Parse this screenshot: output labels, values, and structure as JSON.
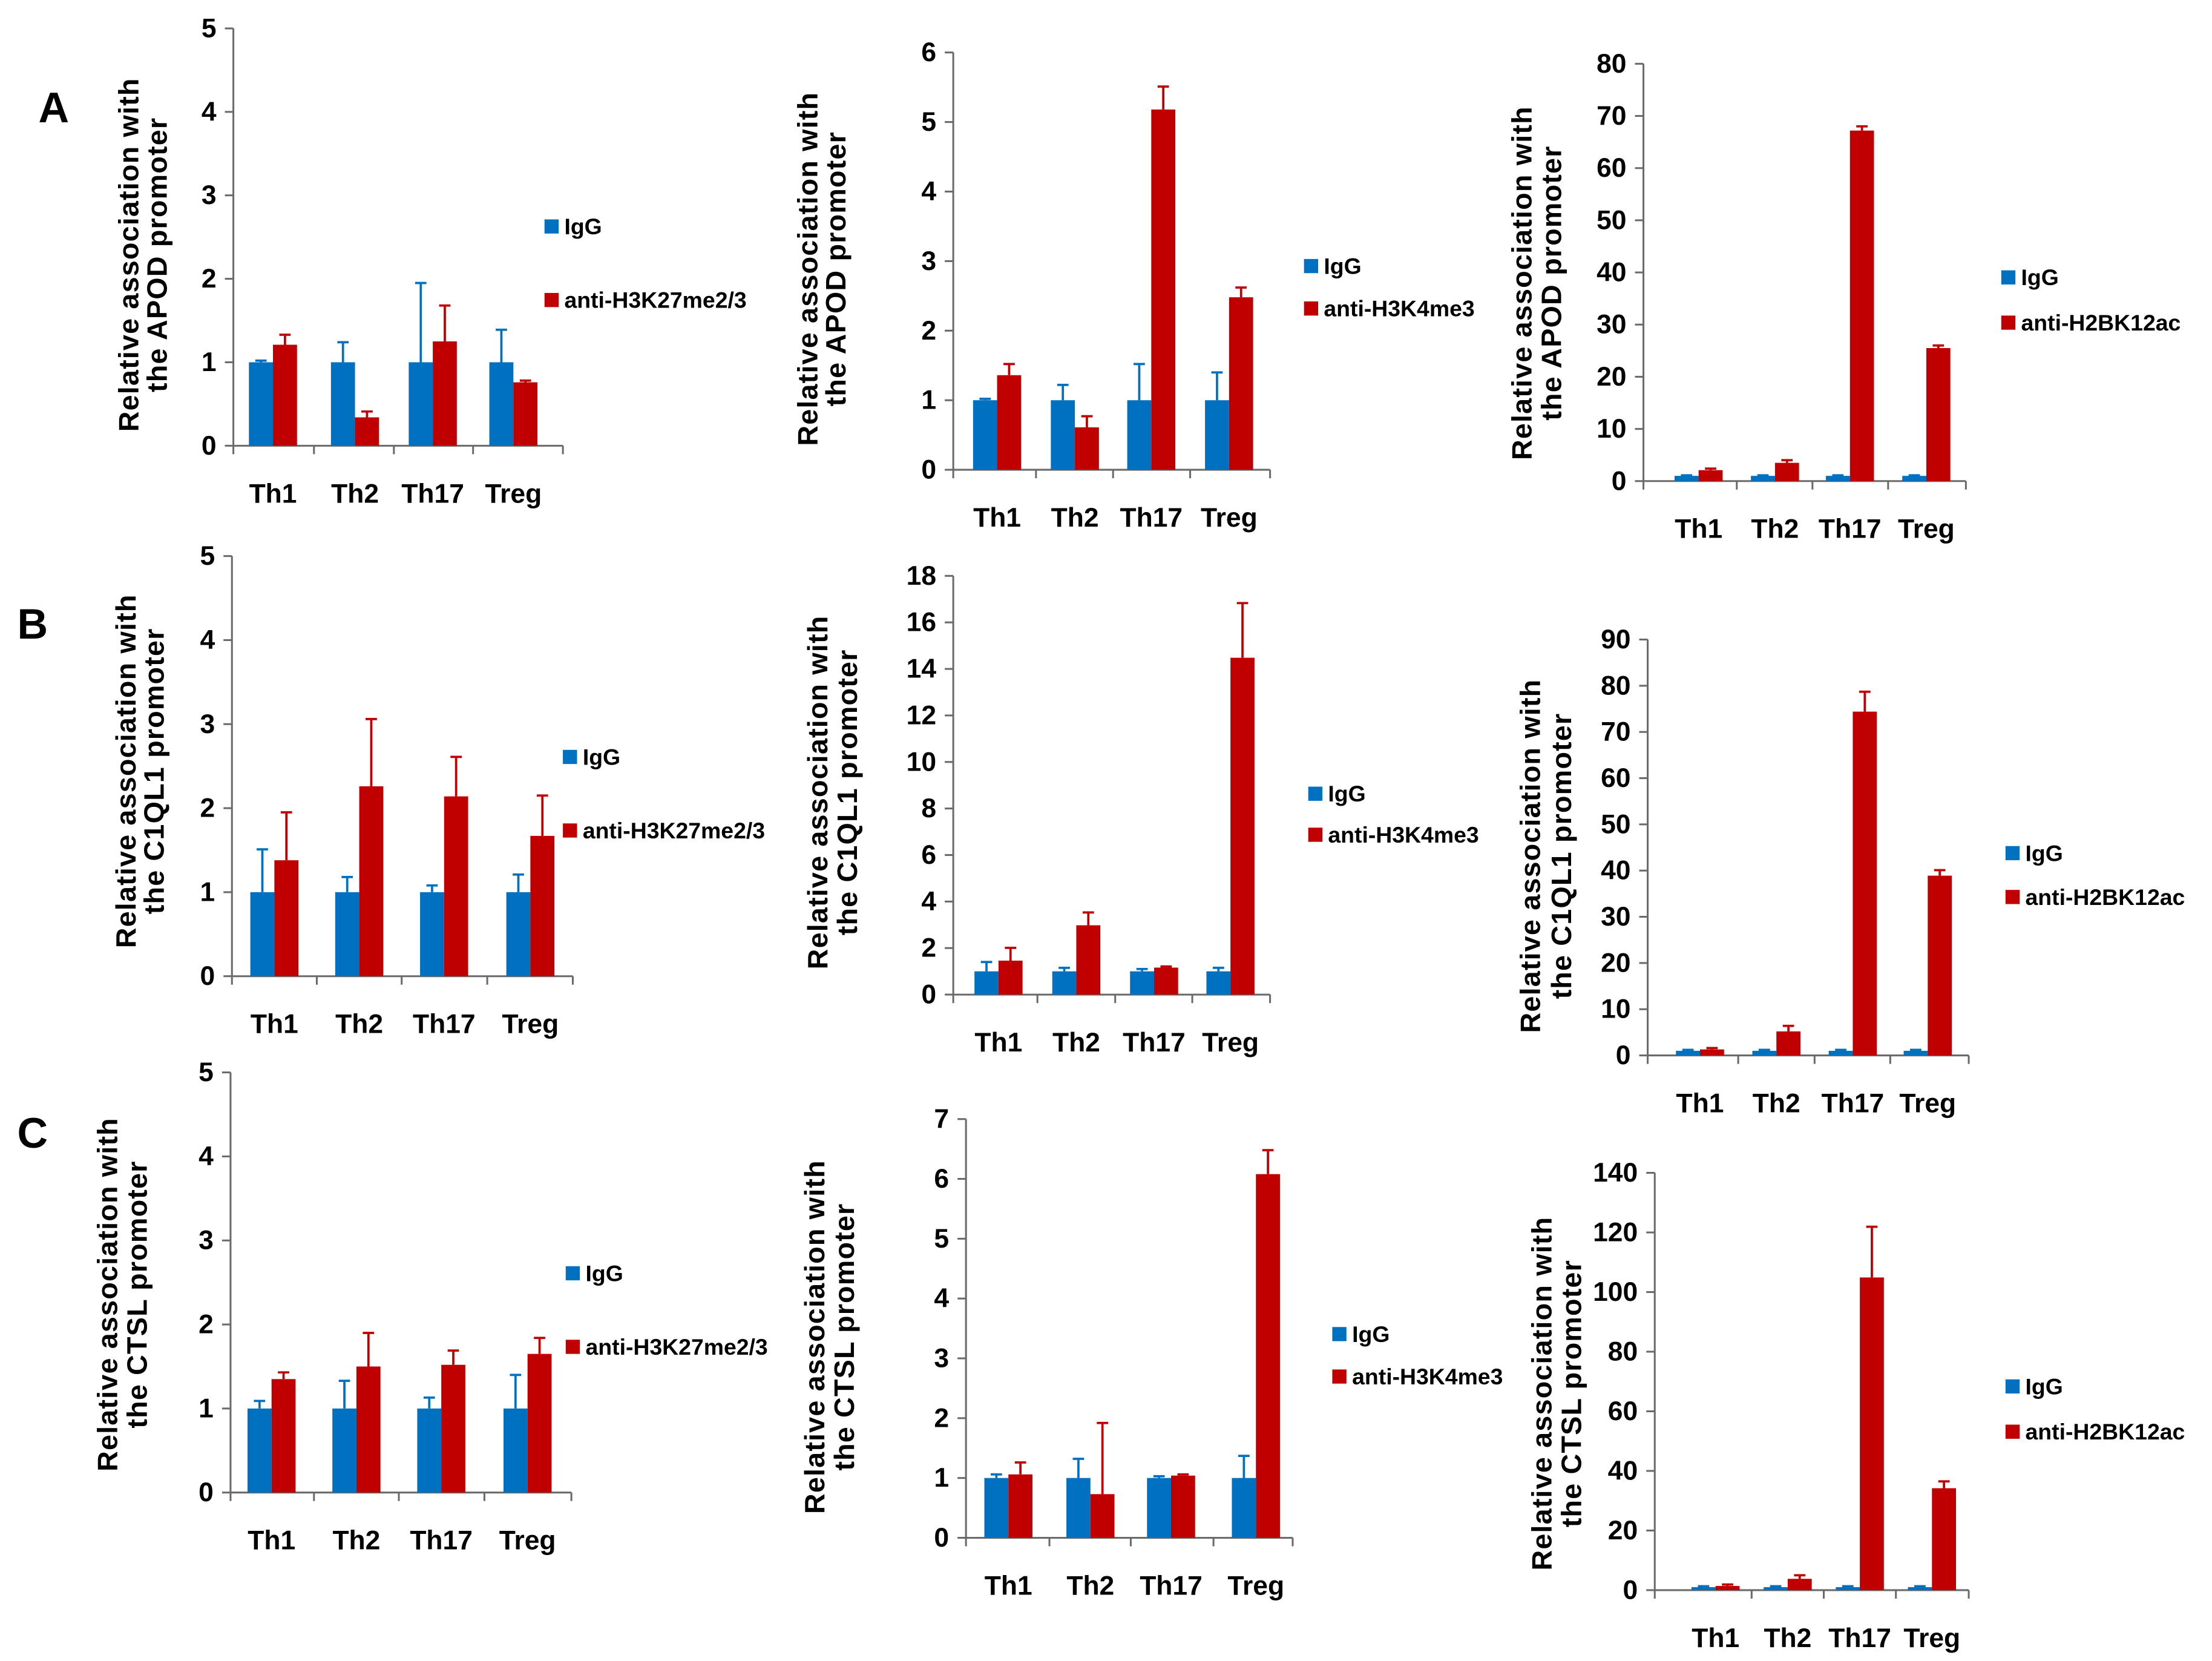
{
  "row_labels": [
    "A",
    "B",
    "C"
  ],
  "chart_data": [
    {
      "type": "bar",
      "legend": "right",
      "grid": false,
      "ylabel": [
        "Relative association with",
        "the APOD promoter"
      ],
      "categories": [
        "Th1",
        "Th2",
        "Th17",
        "Treg"
      ],
      "ylim": [
        0,
        5
      ],
      "yticks": [
        0,
        1,
        2,
        3,
        4,
        5
      ],
      "series": [
        {
          "name": "IgG",
          "color": "#0070C0",
          "values": [
            1,
            1,
            1,
            1
          ],
          "errors": [
            0.02,
            0.24,
            0.95,
            0.39
          ]
        },
        {
          "name": "anti-H3K27me2/3",
          "color": "#C00000",
          "values": [
            1.21,
            0.34,
            1.25,
            0.76
          ],
          "errors": [
            0.12,
            0.07,
            0.43,
            0.02
          ]
        }
      ]
    },
    {
      "type": "bar",
      "legend": "right",
      "grid": false,
      "ylabel": [
        "Relative association with",
        "the APOD promoter"
      ],
      "categories": [
        "Th1",
        "Th2",
        "Th17",
        "Treg"
      ],
      "ylim": [
        0,
        6
      ],
      "yticks": [
        0,
        1,
        2,
        3,
        4,
        5,
        6
      ],
      "series": [
        {
          "name": "IgG",
          "color": "#0070C0",
          "values": [
            1,
            1,
            1,
            1
          ],
          "errors": [
            0.02,
            0.22,
            0.52,
            0.4
          ]
        },
        {
          "name": "anti-H3K4me3",
          "color": "#C00000",
          "values": [
            1.36,
            0.61,
            5.18,
            2.48
          ],
          "errors": [
            0.16,
            0.16,
            0.33,
            0.14
          ]
        }
      ]
    },
    {
      "type": "bar",
      "legend": "right",
      "grid": false,
      "ylabel": [
        "Relative association with",
        "the APOD promoter"
      ],
      "categories": [
        "Th1",
        "Th2",
        "Th17",
        "Treg"
      ],
      "ylim": [
        0,
        80
      ],
      "yticks": [
        0,
        10,
        20,
        30,
        40,
        50,
        60,
        70,
        80
      ],
      "series": [
        {
          "name": "IgG",
          "color": "#0070C0",
          "values": [
            1,
            1,
            1,
            1
          ],
          "errors": [
            0.1,
            0.1,
            0.1,
            0.1
          ]
        },
        {
          "name": "anti-H2BK12ac",
          "color": "#C00000",
          "values": [
            2.1,
            3.5,
            67.2,
            25.5
          ],
          "errors": [
            0.3,
            0.5,
            0.8,
            0.5
          ]
        }
      ]
    },
    {
      "type": "bar",
      "legend": "right",
      "grid": false,
      "ylabel": [
        "Relative association with",
        "the C1QL1 promoter"
      ],
      "categories": [
        "Th1",
        "Th2",
        "Th17",
        "Treg"
      ],
      "ylim": [
        0,
        5
      ],
      "yticks": [
        0,
        1,
        2,
        3,
        4,
        5
      ],
      "series": [
        {
          "name": "IgG",
          "color": "#0070C0",
          "values": [
            1,
            1,
            1,
            1
          ],
          "errors": [
            0.51,
            0.18,
            0.08,
            0.21
          ]
        },
        {
          "name": "anti-H3K27me2/3",
          "color": "#C00000",
          "values": [
            1.38,
            2.26,
            2.14,
            1.67
          ],
          "errors": [
            0.57,
            0.8,
            0.47,
            0.48
          ]
        }
      ]
    },
    {
      "type": "bar",
      "legend": "right",
      "grid": false,
      "ylabel": [
        "Relative association with",
        "the C1QL1 promoter"
      ],
      "categories": [
        "Th1",
        "Th2",
        "Th17",
        "Treg"
      ],
      "ylim": [
        0,
        18
      ],
      "yticks": [
        0,
        2,
        4,
        6,
        8,
        10,
        12,
        14,
        16,
        18
      ],
      "series": [
        {
          "name": "IgG",
          "color": "#0070C0",
          "values": [
            1,
            1,
            1,
            1
          ],
          "errors": [
            0.4,
            0.15,
            0.1,
            0.15
          ]
        },
        {
          "name": "anti-H3K4me3",
          "color": "#C00000",
          "values": [
            1.46,
            2.98,
            1.16,
            14.48
          ],
          "errors": [
            0.55,
            0.55,
            0.05,
            2.35
          ]
        }
      ]
    },
    {
      "type": "bar",
      "legend": "right",
      "grid": false,
      "ylabel": [
        "Relative association with",
        "the C1QL1 promoter"
      ],
      "categories": [
        "Th1",
        "Th2",
        "Th17",
        "Treg"
      ],
      "ylim": [
        0,
        90
      ],
      "yticks": [
        0,
        10,
        20,
        30,
        40,
        50,
        60,
        70,
        80,
        90
      ],
      "series": [
        {
          "name": "IgG",
          "color": "#0070C0",
          "values": [
            1,
            1,
            1,
            1
          ],
          "errors": [
            0.2,
            0.2,
            0.2,
            0.2
          ]
        },
        {
          "name": "anti-H2BK12ac",
          "color": "#C00000",
          "values": [
            1.3,
            5.2,
            74.4,
            38.9
          ],
          "errors": [
            0.3,
            1.2,
            4.3,
            1.2
          ]
        }
      ]
    },
    {
      "type": "bar",
      "legend": "right",
      "grid": false,
      "ylabel": [
        "Relative association with",
        "the CTSL promoter"
      ],
      "categories": [
        "Th1",
        "Th2",
        "Th17",
        "Treg"
      ],
      "ylim": [
        0,
        5
      ],
      "yticks": [
        0,
        1,
        2,
        3,
        4,
        5
      ],
      "series": [
        {
          "name": "IgG",
          "color": "#0070C0",
          "values": [
            1,
            1,
            1,
            1
          ],
          "errors": [
            0.09,
            0.33,
            0.13,
            0.4
          ]
        },
        {
          "name": "anti-H3K27me2/3",
          "color": "#C00000",
          "values": [
            1.35,
            1.5,
            1.52,
            1.65
          ],
          "errors": [
            0.08,
            0.4,
            0.17,
            0.19
          ]
        }
      ]
    },
    {
      "type": "bar",
      "legend": "right",
      "grid": false,
      "ylabel": [
        "Relative association with",
        "the CTSL promoter"
      ],
      "categories": [
        "Th1",
        "Th2",
        "Th17",
        "Treg"
      ],
      "ylim": [
        0,
        7
      ],
      "yticks": [
        0,
        1,
        2,
        3,
        4,
        5,
        6,
        7
      ],
      "series": [
        {
          "name": "IgG",
          "color": "#0070C0",
          "values": [
            1,
            1,
            1,
            1
          ],
          "errors": [
            0.06,
            0.32,
            0.03,
            0.37
          ]
        },
        {
          "name": "anti-H3K4me3",
          "color": "#C00000",
          "values": [
            1.06,
            0.73,
            1.04,
            6.08
          ],
          "errors": [
            0.2,
            1.19,
            0.02,
            0.4
          ]
        }
      ]
    },
    {
      "type": "bar",
      "legend": "right",
      "grid": false,
      "ylabel": [
        "Relative association with",
        "the CTSL promoter"
      ],
      "categories": [
        "Th1",
        "Th2",
        "Th17",
        "Treg"
      ],
      "ylim": [
        0,
        140
      ],
      "yticks": [
        0,
        20,
        40,
        60,
        80,
        100,
        120,
        140
      ],
      "series": [
        {
          "name": "IgG",
          "color": "#0070C0",
          "values": [
            1,
            1,
            1,
            1
          ],
          "errors": [
            0.3,
            0.3,
            0.3,
            0.3
          ]
        },
        {
          "name": "anti-H2BK12ac",
          "color": "#C00000",
          "values": [
            1.4,
            3.8,
            104.9,
            34.2
          ],
          "errors": [
            0.5,
            1.2,
            17.0,
            2.3
          ]
        }
      ]
    }
  ]
}
